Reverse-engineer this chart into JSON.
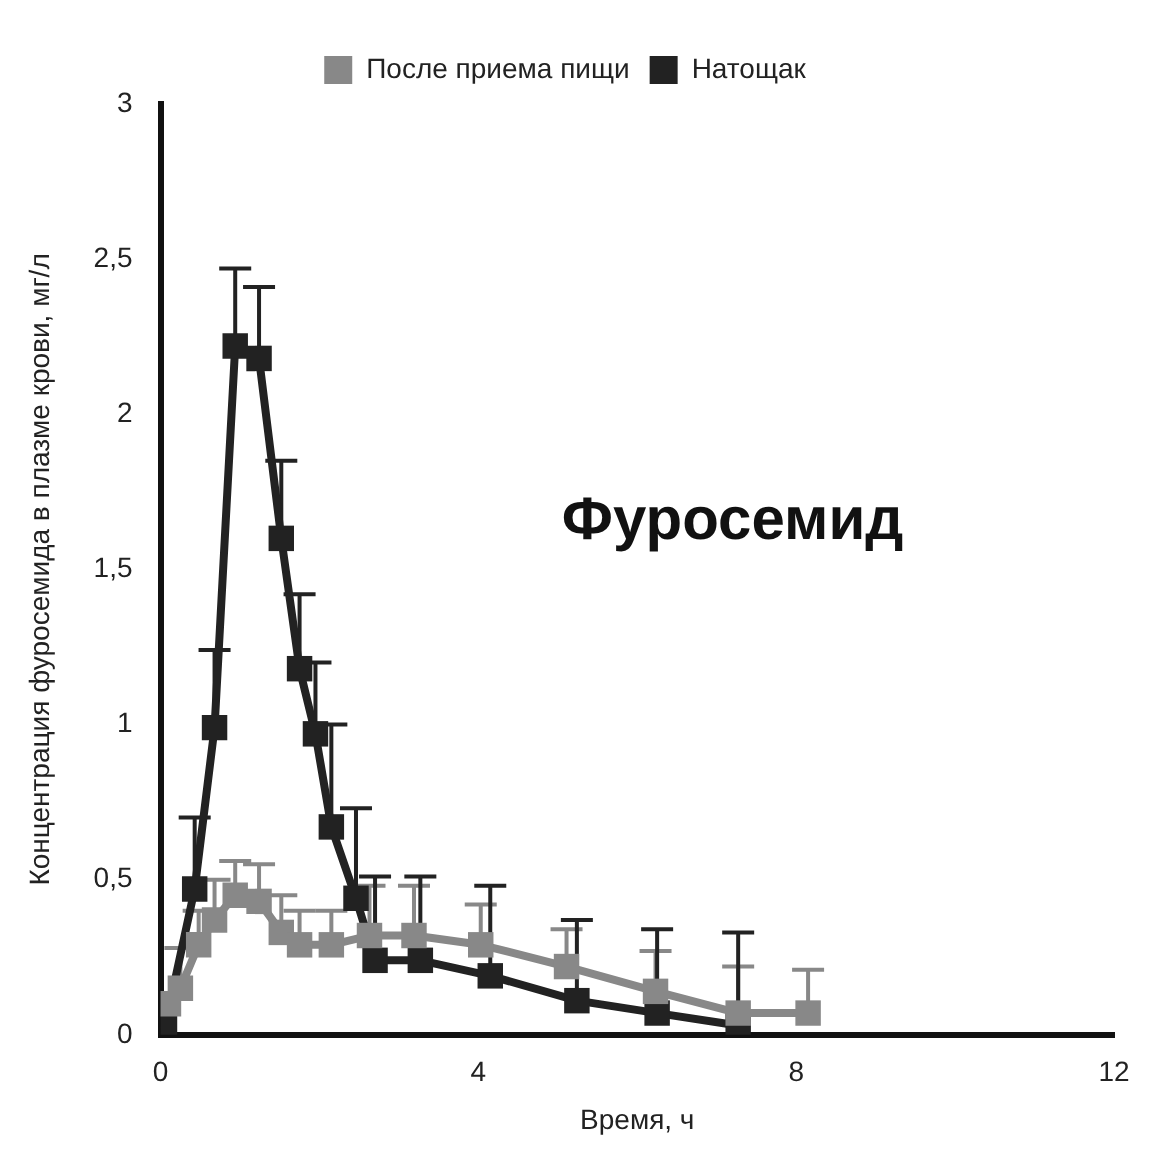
{
  "chart_data": {
    "type": "line",
    "title": "Фуросемид",
    "xlabel": "Время, ч",
    "ylabel": "Концентрация фуросемида в плазме крови, мг/л",
    "xlim": [
      0,
      12
    ],
    "xticks": [
      0,
      4,
      8,
      12
    ],
    "ylim": [
      0,
      3
    ],
    "yticks": [
      0,
      {
        "value": 0.5,
        "label": "0,5"
      },
      1,
      {
        "value": 1.5,
        "label": "1,5"
      },
      2,
      {
        "value": 2.5,
        "label": "2,5"
      },
      3
    ],
    "marker": "square",
    "grid": false,
    "legend": "top",
    "series": [
      {
        "name": "После приема пищи",
        "color": "#888888",
        "x": [
          0.1,
          0.25,
          0.48,
          0.68,
          0.94,
          1.24,
          1.52,
          1.75,
          2.15,
          2.63,
          3.19,
          4.03,
          5.11,
          6.23,
          7.27,
          8.15
        ],
        "values": [
          0.1,
          0.15,
          0.29,
          0.37,
          0.45,
          0.43,
          0.33,
          0.29,
          0.29,
          0.32,
          0.32,
          0.29,
          0.22,
          0.14,
          0.07,
          0.07
        ],
        "errors": [
          null,
          [
            0.15,
            0.28
          ],
          [
            0.29,
            0.4
          ],
          [
            0.37,
            0.5
          ],
          [
            0.45,
            0.56
          ],
          [
            0.43,
            0.55
          ],
          [
            0.33,
            0.45
          ],
          [
            0.29,
            0.4
          ],
          [
            0.29,
            0.4
          ],
          [
            0.32,
            0.48
          ],
          [
            0.32,
            0.48
          ],
          [
            0.29,
            0.42
          ],
          [
            0.22,
            0.34
          ],
          [
            0.14,
            0.27
          ],
          [
            0.07,
            0.22
          ],
          [
            0.07,
            0.21
          ]
        ]
      },
      {
        "name": "Натощак",
        "color": "#222222",
        "x": [
          0.05,
          0.43,
          0.68,
          0.94,
          1.24,
          1.52,
          1.75,
          1.95,
          2.15,
          2.46,
          2.7,
          3.27,
          4.15,
          5.24,
          6.25,
          7.27
        ],
        "values": [
          0.02,
          0.47,
          0.99,
          2.22,
          2.18,
          1.6,
          1.18,
          0.97,
          0.67,
          0.44,
          0.24,
          0.24,
          0.19,
          0.11,
          0.07,
          0.03
        ],
        "errors": [
          null,
          [
            0.47,
            0.7
          ],
          [
            0.99,
            1.24
          ],
          [
            2.22,
            2.47
          ],
          [
            2.18,
            2.41
          ],
          [
            1.6,
            1.85
          ],
          [
            1.18,
            1.42
          ],
          [
            0.97,
            1.2
          ],
          [
            0.67,
            1.0
          ],
          [
            0.44,
            0.73
          ],
          [
            0.24,
            0.51
          ],
          [
            0.24,
            0.51
          ],
          [
            0.19,
            0.48
          ],
          [
            0.11,
            0.37
          ],
          [
            0.07,
            0.34
          ],
          [
            0.03,
            0.33
          ]
        ]
      }
    ]
  }
}
